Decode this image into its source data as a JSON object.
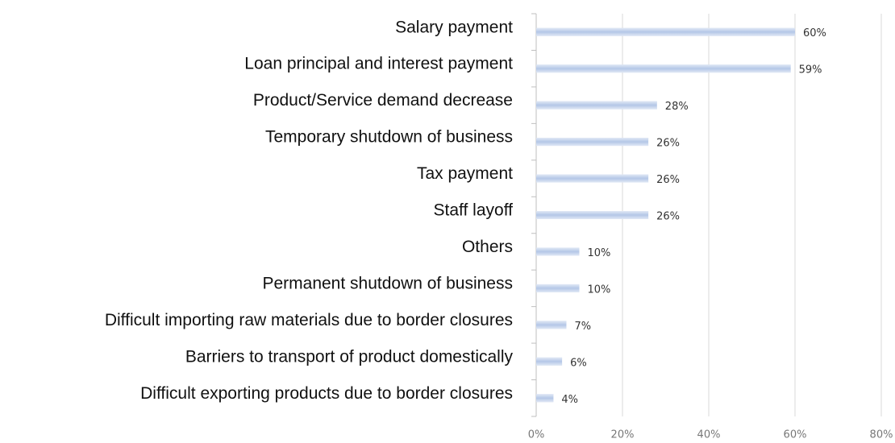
{
  "chart_data": {
    "type": "bar",
    "orientation": "horizontal",
    "categories": [
      "Salary payment",
      "Loan principal and interest payment",
      "Product/Service demand decrease",
      "Temporary shutdown of business",
      "Tax payment",
      "Staff layoff",
      "Others",
      "Permanent shutdown of business",
      "Difficult importing raw materials due to border closures",
      "Barriers to transport of product domestically",
      "Difficult exporting products due to border closures"
    ],
    "values": [
      60,
      59,
      28,
      26,
      26,
      26,
      10,
      10,
      7,
      6,
      4
    ],
    "value_labels": [
      "60%",
      "59%",
      "28%",
      "26%",
      "26%",
      "26%",
      "10%",
      "10%",
      "7%",
      "6%",
      "4%"
    ],
    "color": "#b4c7e7",
    "xlim": [
      0,
      80
    ],
    "xticks": [
      {
        "value": 0,
        "label": "0%"
      },
      {
        "value": 20,
        "label": "20%"
      },
      {
        "value": 40,
        "label": "40%"
      },
      {
        "value": 60,
        "label": "60%"
      },
      {
        "value": 80,
        "label": "80%"
      }
    ],
    "grid": true
  }
}
